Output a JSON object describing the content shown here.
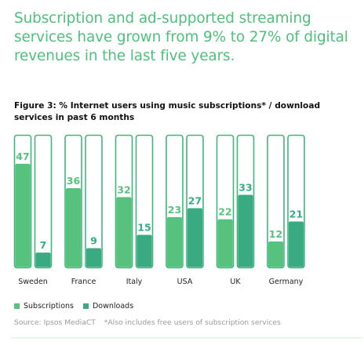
{
  "headline": "Subscription and ad-supported streaming services have grown from 9% to 27% of digital revenues in the last five years.",
  "figure_title": "Figure 3: % Internet users using music subscriptions* / download services in past 6 months",
  "legend": {
    "subscriptions": "Subscriptions",
    "downloads": "Downloads"
  },
  "source": {
    "text": "Source: Ipsos MediaCT",
    "note": "*Also includes free users of subscription services"
  },
  "colors": {
    "subscriptions": "#57c27e",
    "downloads": "#3aaa82",
    "outline": "#3fb77b",
    "headline": "#4fc07c"
  },
  "chart_data": {
    "type": "bar",
    "title": "Figure 3: % Internet users using music subscriptions* / download services in past 6 months",
    "categories": [
      "Sweden",
      "France",
      "Italy",
      "USA",
      "UK",
      "Germany"
    ],
    "series": [
      {
        "name": "Subscriptions",
        "values": [
          47,
          36,
          32,
          23,
          22,
          12
        ]
      },
      {
        "name": "Downloads",
        "values": [
          7,
          9,
          15,
          27,
          33,
          21
        ]
      }
    ],
    "ylim": [
      0,
      60
    ],
    "grid": false,
    "legend_position": "bottom-left",
    "data_labels": true
  }
}
